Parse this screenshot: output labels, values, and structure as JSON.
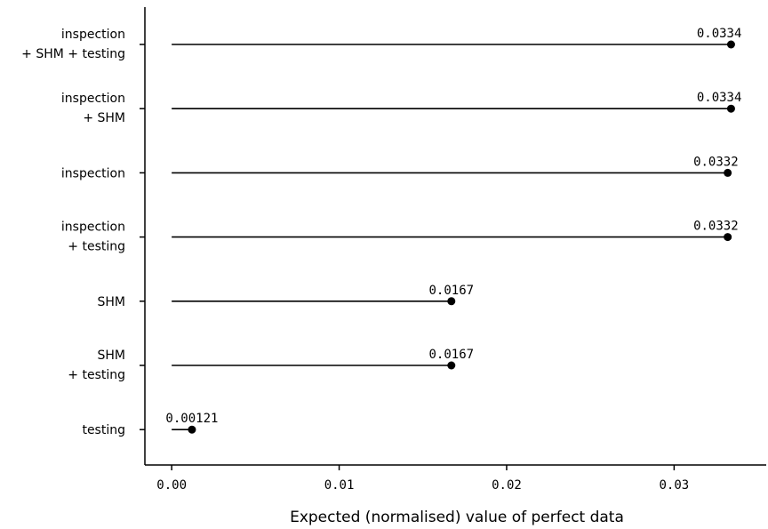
{
  "chart_data": {
    "type": "lollipop",
    "orientation": "horizontal",
    "xlabel": "Expected (normalised) value of perfect data",
    "ylabel": "",
    "title": "",
    "xlim": [
      -0.0016,
      0.0355
    ],
    "xticks": [
      0.0,
      0.01,
      0.02,
      0.03
    ],
    "xtick_labels": [
      "0.00",
      "0.01",
      "0.02",
      "0.03"
    ],
    "grid": false,
    "legend": "none",
    "line_color": "#000000",
    "marker_color": "#000000",
    "categories": [
      {
        "lines": [
          "inspection",
          "+ SHM + testing"
        ],
        "value": 0.0334,
        "value_label": "0.0334"
      },
      {
        "lines": [
          "inspection",
          "+ SHM"
        ],
        "value": 0.0334,
        "value_label": "0.0334"
      },
      {
        "lines": [
          "inspection"
        ],
        "value": 0.0332,
        "value_label": "0.0332"
      },
      {
        "lines": [
          "inspection",
          "+ testing"
        ],
        "value": 0.0332,
        "value_label": "0.0332"
      },
      {
        "lines": [
          "SHM"
        ],
        "value": 0.0167,
        "value_label": "0.0167"
      },
      {
        "lines": [
          "SHM",
          "+ testing"
        ],
        "value": 0.0167,
        "value_label": "0.0167"
      },
      {
        "lines": [
          "testing"
        ],
        "value": 0.00121,
        "value_label": "0.00121"
      }
    ]
  }
}
